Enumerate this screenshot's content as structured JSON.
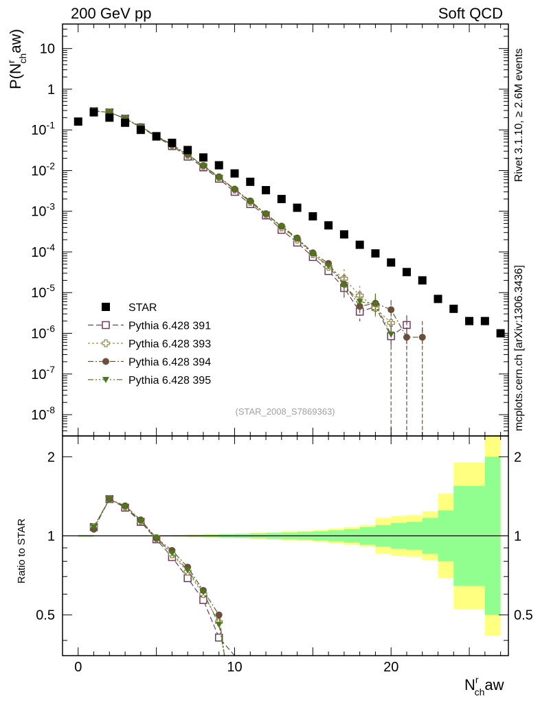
{
  "header": {
    "left": "200 GeV pp",
    "right": "Soft QCD"
  },
  "side_text": {
    "rivet": "Rivet 3.1.10, ≥ 2.6M events",
    "mcplots": "mcplots.cern.ch [arXiv:1306.3436]"
  },
  "analysis_id": "(STAR_2008_S7869363)",
  "axes": {
    "y_main": "P(N",
    "y_main_sup": "r",
    "y_main_sub": "ch",
    "y_main_tail": "aw)",
    "y_ratio": "Ratio to STAR",
    "x_label": "N",
    "x_sup": "r",
    "x_sub": "ch",
    "x_tail": "aw"
  },
  "main_ticks": [
    {
      "base": "10",
      "exp": "-8",
      "value": 1e-08
    },
    {
      "base": "10",
      "exp": "-7",
      "value": 1e-07
    },
    {
      "base": "10",
      "exp": "-6",
      "value": 1e-06
    },
    {
      "base": "10",
      "exp": "-5",
      "value": 1e-05
    },
    {
      "base": "10",
      "exp": "-4",
      "value": 0.0001
    },
    {
      "base": "10",
      "exp": "-3",
      "value": 0.001
    },
    {
      "base": "10",
      "exp": "-2",
      "value": 0.01
    },
    {
      "base": "10",
      "exp": "-1",
      "value": 0.1
    },
    {
      "base": "1",
      "exp": "",
      "value": 1
    },
    {
      "base": "10",
      "exp": "",
      "value": 10
    }
  ],
  "ratio_ticks": [
    {
      "label": "0.5",
      "value": 0.5
    },
    {
      "label": "1",
      "value": 1
    },
    {
      "label": "2",
      "value": 2
    }
  ],
  "x_ticks": [
    {
      "label": "0",
      "value": 0
    },
    {
      "label": "10",
      "value": 10
    },
    {
      "label": "20",
      "value": 20
    }
  ],
  "legend": [
    {
      "label": "STAR",
      "marker": "square-filled",
      "color": "#000000"
    },
    {
      "label": "Pythia 6.428 391",
      "marker": "square-open",
      "color": "#6b3a5c"
    },
    {
      "label": "Pythia 6.428 393",
      "marker": "cross-open",
      "color": "#9a8a50"
    },
    {
      "label": "Pythia 6.428 394",
      "marker": "circle-filled",
      "color": "#6b4f3a"
    },
    {
      "label": "Pythia 6.428 395",
      "marker": "triangle-down-filled",
      "color": "#4a7a1a"
    }
  ],
  "chart_data": {
    "type": "scatter",
    "x_range": [
      -1,
      27.5
    ],
    "y_scale": "log",
    "y_range": [
      3e-09,
      40
    ],
    "ratio_scale": "log",
    "ratio_range": [
      0.35,
      2.4
    ],
    "x_label": "N_ch^r aw",
    "y_label": "P(N_ch^r aw)",
    "ratio_label": "Ratio to STAR",
    "legend_position": "bottom-left",
    "reference": {
      "name": "STAR",
      "x": [
        0,
        1,
        2,
        3,
        4,
        5,
        6,
        7,
        8,
        9,
        10,
        11,
        12,
        13,
        14,
        15,
        16,
        17,
        18,
        19,
        20,
        21,
        22,
        23,
        24,
        25,
        26,
        27
      ],
      "y": [
        0.16,
        0.27,
        0.2,
        0.15,
        0.1,
        0.07,
        0.048,
        0.032,
        0.021,
        0.0135,
        0.0085,
        0.0053,
        0.0033,
        0.002,
        0.00122,
        0.00075,
        0.00045,
        0.00027,
        0.00015,
        9.2e-05,
        5.5e-05,
        3.2e-05,
        2e-05,
        7e-06,
        4e-06,
        2e-06,
        2e-06,
        1e-06
      ]
    },
    "series": [
      {
        "name": "Pythia 6.428 391",
        "x": [
          1,
          2,
          3,
          4,
          5,
          6,
          7,
          8,
          9,
          10,
          11,
          12,
          13,
          14,
          15,
          16,
          17,
          18,
          19,
          20,
          21
        ],
        "y": [
          0.29,
          0.27,
          0.19,
          0.115,
          0.068,
          0.04,
          0.022,
          0.012,
          0.0063,
          0.003,
          0.0015,
          0.00079,
          0.00035,
          0.00017,
          7.5e-05,
          3.4e-05,
          1.3e-05,
          3.4e-06,
          4.5e-06,
          8.5e-07,
          1.6e-06
        ],
        "ratio": [
          1.08,
          1.38,
          1.28,
          1.13,
          0.97,
          0.83,
          0.69,
          0.57,
          0.41,
          0.35
        ]
      },
      {
        "name": "Pythia 6.428 393",
        "x": [
          1,
          2,
          3,
          4,
          5,
          6,
          7,
          8,
          9,
          10,
          11,
          12,
          13,
          14,
          15,
          16,
          17,
          18,
          19,
          20
        ],
        "y": [
          0.29,
          0.27,
          0.19,
          0.117,
          0.07,
          0.042,
          0.024,
          0.0128,
          0.0068,
          0.0034,
          0.0017,
          0.00084,
          0.0004,
          0.0002,
          8.8e-05,
          4.3e-05,
          2.2e-05,
          8.5e-06,
          4.2e-06,
          1.8e-06
        ],
        "ratio": [
          1.08,
          1.38,
          1.29,
          1.14,
          0.98,
          0.85,
          0.73,
          0.6,
          0.47
        ]
      },
      {
        "name": "Pythia 6.428 394",
        "x": [
          1,
          2,
          3,
          4,
          5,
          6,
          7,
          8,
          9,
          10,
          11,
          12,
          13,
          14,
          15,
          16,
          17,
          18,
          19,
          20,
          21,
          22
        ],
        "y": [
          0.29,
          0.27,
          0.19,
          0.12,
          0.072,
          0.043,
          0.025,
          0.0133,
          0.007,
          0.0035,
          0.0018,
          0.00087,
          0.00043,
          0.00022,
          9.5e-05,
          5.2e-05,
          1.6e-05,
          4.6e-06,
          5.5e-06,
          3.8e-06,
          8e-07,
          8e-07
        ],
        "ratio": [
          1.06,
          1.38,
          1.3,
          1.15,
          0.98,
          0.88,
          0.76,
          0.62,
          0.5
        ]
      },
      {
        "name": "Pythia 6.428 395",
        "x": [
          1,
          2,
          3,
          4,
          5,
          6,
          7,
          8,
          9,
          10,
          11,
          12,
          13,
          14,
          15,
          16,
          17,
          18,
          19,
          20
        ],
        "y": [
          0.29,
          0.27,
          0.19,
          0.118,
          0.07,
          0.042,
          0.024,
          0.013,
          0.0068,
          0.0034,
          0.0017,
          0.00085,
          0.00042,
          0.00021,
          9e-05,
          4.5e-05,
          1.5e-05,
          6e-06,
          5.2e-06,
          9.5e-07
        ],
        "ratio": [
          1.08,
          1.38,
          1.29,
          1.14,
          0.98,
          0.86,
          0.74,
          0.61,
          0.46
        ]
      }
    ],
    "error_bands": {
      "inner": [
        [
          0.5,
          1.01
        ],
        [
          1.5,
          1.005
        ],
        [
          2.5,
          1.005
        ],
        [
          3.5,
          1.005
        ],
        [
          4.5,
          1.005
        ],
        [
          5.5,
          1.006
        ],
        [
          6.5,
          1.008
        ],
        [
          7.5,
          1.01
        ],
        [
          8.5,
          1.012
        ],
        [
          9.5,
          1.015
        ],
        [
          10.5,
          1.018
        ],
        [
          11.5,
          1.022
        ],
        [
          12.5,
          1.026
        ],
        [
          13.5,
          1.03
        ],
        [
          14.5,
          1.035
        ],
        [
          15.5,
          1.04
        ],
        [
          16.5,
          1.05
        ],
        [
          17.5,
          1.06
        ],
        [
          18.5,
          1.08
        ],
        [
          19.5,
          1.1
        ],
        [
          20.5,
          1.12
        ],
        [
          21.5,
          1.13
        ],
        [
          22.5,
          1.17
        ],
        [
          23.5,
          1.25
        ],
        [
          24.5,
          1.55
        ],
        [
          25.5,
          1.55
        ],
        [
          26.5,
          2.0
        ]
      ],
      "outer": [
        [
          0.5,
          1.01
        ],
        [
          1.5,
          1.006
        ],
        [
          2.5,
          1.006
        ],
        [
          3.5,
          1.006
        ],
        [
          4.5,
          1.007
        ],
        [
          5.5,
          1.008
        ],
        [
          6.5,
          1.01
        ],
        [
          7.5,
          1.012
        ],
        [
          8.5,
          1.015
        ],
        [
          9.5,
          1.018
        ],
        [
          10.5,
          1.022
        ],
        [
          11.5,
          1.027
        ],
        [
          12.5,
          1.033
        ],
        [
          13.5,
          1.04
        ],
        [
          14.5,
          1.047
        ],
        [
          15.5,
          1.055
        ],
        [
          16.5,
          1.065
        ],
        [
          17.5,
          1.08
        ],
        [
          18.5,
          1.1
        ],
        [
          19.5,
          1.17
        ],
        [
          20.5,
          1.19
        ],
        [
          21.5,
          1.2
        ],
        [
          22.5,
          1.24
        ],
        [
          23.5,
          1.45
        ],
        [
          24.5,
          1.9
        ],
        [
          25.5,
          1.9
        ],
        [
          26.5,
          2.4
        ]
      ]
    }
  }
}
